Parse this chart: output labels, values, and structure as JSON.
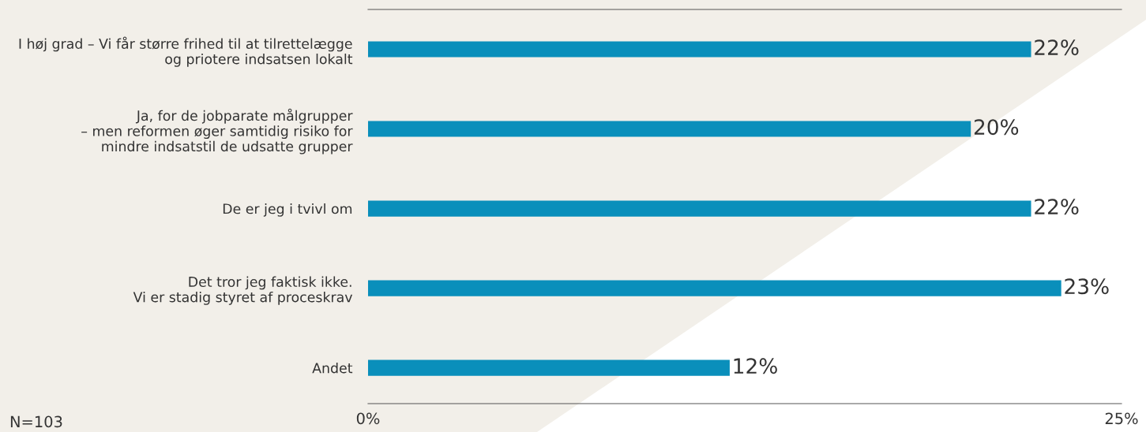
{
  "chart_data": {
    "type": "bar",
    "orientation": "horizontal",
    "categories": [
      "I høj grad – Vi får større frihed til at tilrettelægge\nog priotere indsatsen lokalt",
      "Ja, for de jobparate målgrupper\n– men reformen øger samtidig risiko for\nmindre indsatstil de udsatte grupper",
      "De er jeg i tvivl om",
      "Det tror jeg faktisk ikke.\nVi er stadig styret af proceskrav",
      "Andet"
    ],
    "values": [
      22,
      20,
      22,
      23,
      12
    ],
    "value_labels": [
      "22%",
      "20%",
      "22%",
      "23%",
      "12%"
    ],
    "color": "#0a8fbb",
    "xlim": [
      0,
      25
    ],
    "xticks": [
      {
        "value": 0,
        "label": "0%"
      },
      {
        "value": 25,
        "label": "25%"
      }
    ],
    "grid": false,
    "annotations": [
      "N=103"
    ]
  }
}
